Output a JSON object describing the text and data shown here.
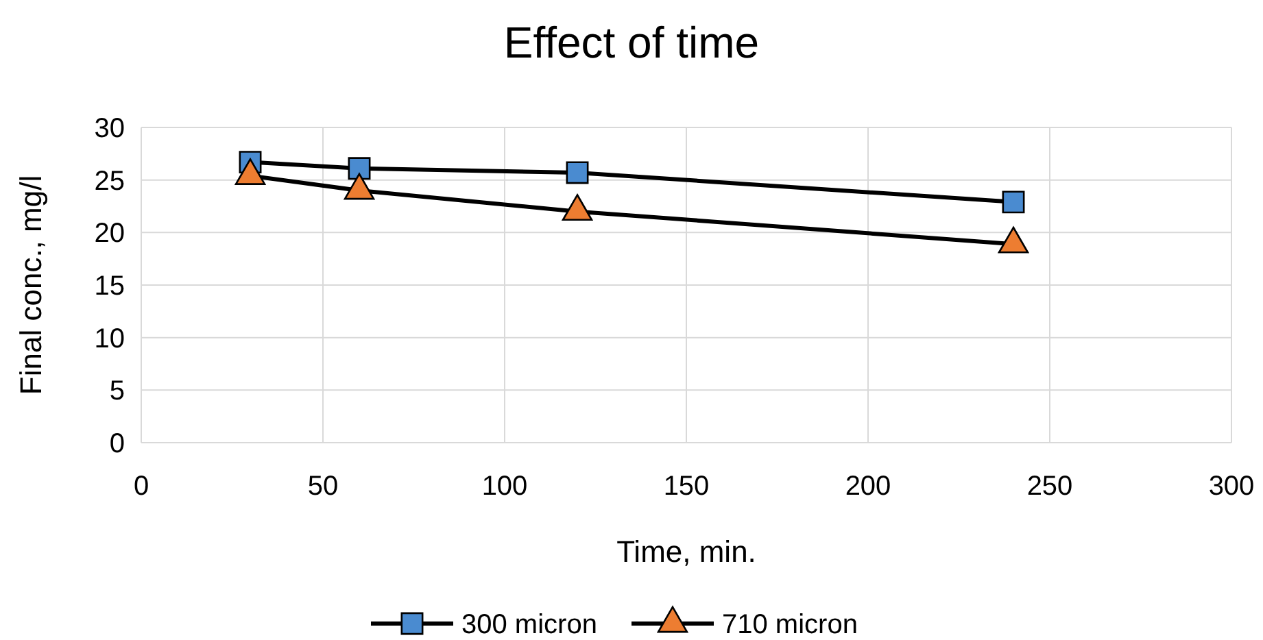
{
  "chart_data": {
    "type": "line",
    "title": "Effect of time",
    "xlabel": "Time, min.",
    "ylabel": "Final conc., mg/l",
    "x": [
      30,
      60,
      120,
      240
    ],
    "series": [
      {
        "name": "300 micron",
        "color": "#4a8bd0",
        "marker": "square",
        "values": [
          26.7,
          26.1,
          25.7,
          22.9
        ]
      },
      {
        "name": "710 micron",
        "color": "#ed7d31",
        "marker": "triangle",
        "values": [
          25.4,
          24.0,
          22.0,
          18.9
        ]
      }
    ],
    "xlim": [
      0,
      300
    ],
    "xticks": [
      0,
      50,
      100,
      150,
      200,
      250,
      300
    ],
    "ylim": [
      0,
      30
    ],
    "yticks": [
      0,
      5,
      10,
      15,
      20,
      25,
      30
    ],
    "grid": true,
    "legend": "bottom",
    "line_style": "solid"
  }
}
